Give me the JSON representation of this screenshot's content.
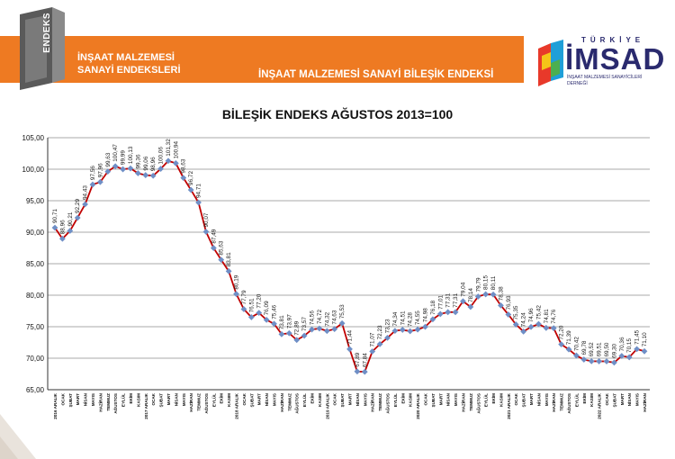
{
  "header": {
    "logo_text": "ENDEKS",
    "title_line1": "İNŞAAT MALZEMESİ",
    "title_line2": "SANAYİ ENDEKSLERİ",
    "subtitle": "İNŞAAT MALZEMESİ SANAYİ BİLEŞİK ENDEKSİ"
  },
  "brand": {
    "top": "TÜRKİYE",
    "name": "İMSAD",
    "tagline": "İNŞAAT MALZEMESİ SANAYİCİLERİ DERNEĞİ"
  },
  "colors": {
    "banner": "#ee7a22",
    "line": "#c00000",
    "marker": "#6f8fc6",
    "brand": "#2a2a6e"
  },
  "chart_data": {
    "type": "line",
    "title": "BİLEŞİK ENDEKS AĞUSTOS 2013=100",
    "ylim": [
      65,
      105
    ],
    "yticks": [
      "65,00",
      "70,00",
      "75,00",
      "80,00",
      "85,00",
      "90,00",
      "95,00",
      "100,00",
      "105,00"
    ],
    "grid": true,
    "categories": [
      "2016 ARALIK",
      "OCAK",
      "ŞUBAT",
      "MART",
      "NİSAN",
      "MAYIS",
      "HAZİRAN",
      "TEMMUZ",
      "AĞUSTOS",
      "EYLÜL",
      "EKİM",
      "KASIM",
      "2017 ARALIK",
      "OCAK",
      "ŞUBAT",
      "MART",
      "NİSAN",
      "MAYIS",
      "HAZİRAN",
      "TEMMUZ",
      "AĞUSTOS",
      "EYLÜL",
      "EKİM",
      "KASIM",
      "2018 ARALIK",
      "OCAK",
      "ŞUBAT",
      "MART",
      "NİSAN",
      "MAYIS",
      "HAZİRAN",
      "TEMMUZ",
      "AĞUSTOS",
      "EYLÜL",
      "EKİM",
      "KASIM",
      "2019 ARALIK",
      "OCAK",
      "ŞUBAT",
      "MART",
      "NİSAN",
      "MAYIS",
      "HAZİRAN",
      "TEMMUZ",
      "AĞUSTOS",
      "EYLÜL",
      "EKİM",
      "KASIM",
      "2020 ARALIK",
      "OCAK",
      "ŞUBAT",
      "MART",
      "NİSAN",
      "MAYIS",
      "HAZİRAN",
      "TEMMUZ",
      "AĞUSTOS",
      "EYLÜL",
      "EKİM",
      "KASIM",
      "2021 ARALIK",
      "OCAK",
      "ŞUBAT",
      "MART",
      "NİSAN",
      "MAYIS",
      "HAZİRAN",
      "TEMMUZ",
      "AĞUSTOS",
      "EYLÜL",
      "EKİM",
      "KASIM",
      "2022 ARALIK",
      "OCAK",
      "ŞUBAT",
      "MART",
      "NİSAN",
      "MAYIS",
      "HAZİRAN"
    ],
    "values": [
      90.71,
      88.96,
      90.21,
      92.29,
      94.43,
      97.56,
      97.96,
      99.63,
      100.47,
      99.99,
      100.13,
      99.36,
      99.06,
      98.96,
      100.06,
      101.32,
      100.94,
      98.63,
      96.72,
      94.71,
      90.07,
      87.49,
      85.63,
      83.81,
      80.19,
      77.79,
      76.51,
      77.2,
      76.09,
      75.46,
      73.81,
      73.97,
      72.89,
      73.57,
      74.56,
      74.72,
      74.32,
      74.63,
      75.53,
      71.44,
      67.89,
      67.84,
      71.07,
      72.23,
      73.23,
      74.34,
      74.51,
      74.28,
      74.55,
      74.98,
      76.18,
      77.01,
      77.31,
      77.31,
      79.04,
      78.14,
      79.79,
      80.15,
      80.11,
      78.38,
      76.93,
      75.35,
      74.24,
      74.96,
      75.42,
      74.81,
      74.76,
      72.2,
      71.39,
      70.42,
      69.78,
      69.52,
      69.51,
      69.5,
      69.3,
      70.36,
      70.15,
      71.45,
      71.1
    ],
    "labels": [
      "90,71",
      "88,96",
      "90,21",
      "92,29",
      "94,43",
      "97,56",
      "97,96",
      "99,63",
      "100,47",
      "99,99",
      "100,13",
      "99,36",
      "99,06",
      "98,96",
      "100,06",
      "101,32",
      "100,94",
      "98,63",
      "96,72",
      "94,71",
      "90,07",
      "87,49",
      "85,63",
      "83,81",
      "80,19",
      "77,79",
      "76,51",
      "77,20",
      "76,09",
      "75,46",
      "73,81",
      "73,97",
      "72,89",
      "73,57",
      "74,56",
      "74,72",
      "74,32",
      "74,63",
      "75,53",
      "71,44",
      "67,89",
      "67,84",
      "71,07",
      "72,23",
      "73,23",
      "74,34",
      "74,51",
      "74,28",
      "74,55",
      "74,98",
      "76,18",
      "77,01",
      "77,31",
      "77,31",
      "79,04",
      "78,14",
      "79,79",
      "80,15",
      "80,11",
      "78,38",
      "76,93",
      "75,35",
      "74,24",
      "74,96",
      "75,42",
      "74,81",
      "74,76",
      "72,20",
      "71,39",
      "70,42",
      "69,78",
      "69,52",
      "69,51",
      "69,50",
      "69,30",
      "70,36",
      "70,15",
      "71,45",
      "71,10"
    ]
  }
}
